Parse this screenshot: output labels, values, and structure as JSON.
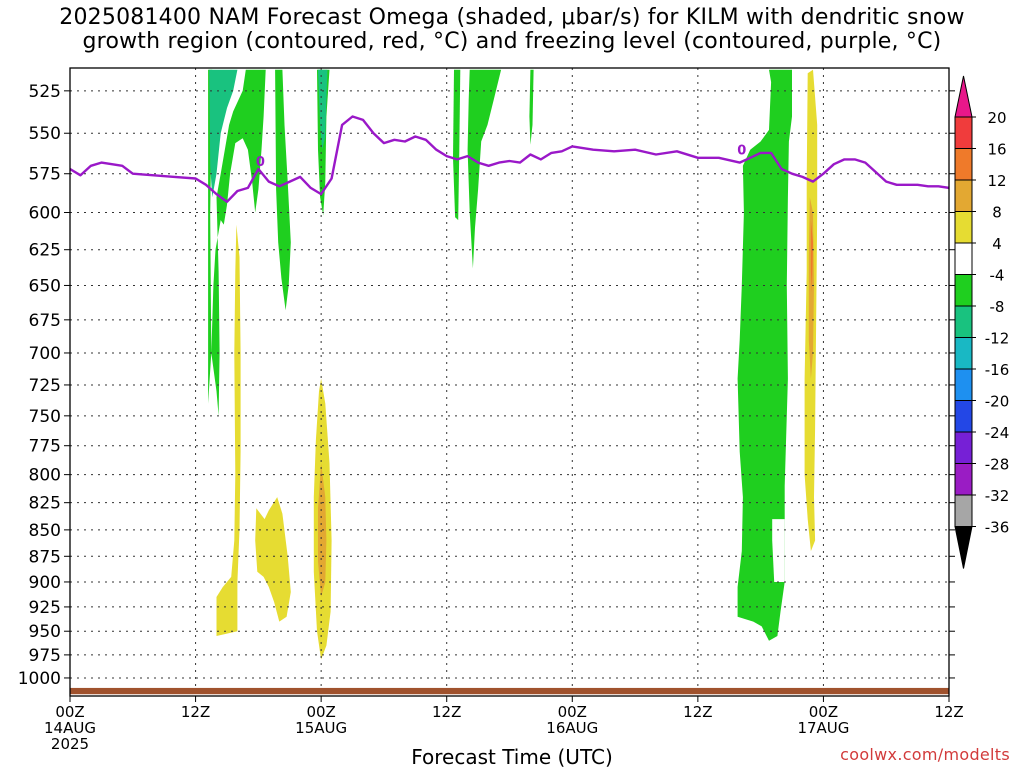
{
  "title": {
    "line1": "2025081400 NAM Forecast Omega (shaded, μbar/s) for KILM with dendritic snow",
    "line2": "growth region (contoured, red, °C) and freezing level (contoured, purple, °C)"
  },
  "credit": "coolwx.com/modelts",
  "chart_data": {
    "type": "heatmap",
    "title": "2025081400 NAM Forecast Omega (shaded, μbar/s) for KILM with dendritic snow growth region (contoured, red, °C) and freezing level (contoured, purple, °C)",
    "xlabel": "Forecast Time (UTC)",
    "ylabel": "",
    "xlim_hours": [
      0,
      84
    ],
    "ylim_hpa": [
      1020,
      512
    ],
    "y_ticks": [
      525,
      550,
      575,
      600,
      625,
      650,
      675,
      700,
      725,
      750,
      775,
      800,
      825,
      850,
      875,
      900,
      925,
      950,
      975,
      1000
    ],
    "x_ticks": [
      {
        "hour": 0,
        "label": "00Z",
        "date": "14AUG",
        "year": "2025"
      },
      {
        "hour": 12,
        "label": "12Z",
        "date": "",
        "year": ""
      },
      {
        "hour": 24,
        "label": "00Z",
        "date": "15AUG",
        "year": ""
      },
      {
        "hour": 36,
        "label": "12Z",
        "date": "",
        "year": ""
      },
      {
        "hour": 48,
        "label": "00Z",
        "date": "16AUG",
        "year": ""
      },
      {
        "hour": 60,
        "label": "12Z",
        "date": "",
        "year": ""
      },
      {
        "hour": 72,
        "label": "00Z",
        "date": "17AUG",
        "year": ""
      },
      {
        "hour": 84,
        "label": "12Z",
        "date": "",
        "year": ""
      }
    ],
    "grid": true,
    "colorbar": {
      "labels": [
        "20",
        "16",
        "12",
        "8",
        "4",
        "-4",
        "-8",
        "-12",
        "-16",
        "-20",
        "-24",
        "-28",
        "-32",
        "-36"
      ],
      "colors": [
        "#e8178a",
        "#f03c3c",
        "#ef7a2a",
        "#e3a832",
        "#e6dc32",
        "#ffffff",
        "#1fcf1f",
        "#19c27f",
        "#19b8c4",
        "#1e90f0",
        "#2347e6",
        "#7620d6",
        "#9a1cc4",
        "#a6a6a6",
        "#000000"
      ]
    },
    "freezing_level": {
      "color": "#9a18c8",
      "label": "0",
      "points": [
        [
          0,
          572
        ],
        [
          1,
          576
        ],
        [
          2,
          570
        ],
        [
          3,
          568
        ],
        [
          4,
          569
        ],
        [
          5,
          570
        ],
        [
          6,
          575
        ],
        [
          8,
          576
        ],
        [
          10,
          577
        ],
        [
          12,
          578
        ],
        [
          13,
          582
        ],
        [
          14,
          588
        ],
        [
          15,
          593
        ],
        [
          16,
          586
        ],
        [
          17,
          584
        ],
        [
          18,
          572
        ],
        [
          19,
          580
        ],
        [
          20,
          583
        ],
        [
          21,
          580
        ],
        [
          22,
          577
        ],
        [
          23,
          584
        ],
        [
          24,
          588
        ],
        [
          25,
          578
        ],
        [
          26,
          545
        ],
        [
          27,
          540
        ],
        [
          28,
          542
        ],
        [
          29,
          550
        ],
        [
          30,
          556
        ],
        [
          31,
          554
        ],
        [
          32,
          555
        ],
        [
          33,
          552
        ],
        [
          34,
          554
        ],
        [
          35,
          560
        ],
        [
          36,
          564
        ],
        [
          37,
          566
        ],
        [
          38,
          564
        ],
        [
          39,
          568
        ],
        [
          40,
          570
        ],
        [
          41,
          568
        ],
        [
          42,
          567
        ],
        [
          43,
          568
        ],
        [
          44,
          563
        ],
        [
          45,
          566
        ],
        [
          46,
          562
        ],
        [
          47,
          561
        ],
        [
          48,
          558
        ],
        [
          50,
          560
        ],
        [
          52,
          561
        ],
        [
          54,
          560
        ],
        [
          56,
          563
        ],
        [
          58,
          561
        ],
        [
          60,
          565
        ],
        [
          62,
          565
        ],
        [
          64,
          568
        ],
        [
          65,
          565
        ],
        [
          66,
          562
        ],
        [
          67,
          562
        ],
        [
          68,
          572
        ],
        [
          69,
          575
        ],
        [
          70,
          577
        ],
        [
          71,
          580
        ],
        [
          72,
          575
        ],
        [
          73,
          569
        ],
        [
          74,
          566
        ],
        [
          75,
          566
        ],
        [
          76,
          568
        ],
        [
          77,
          574
        ],
        [
          78,
          580
        ],
        [
          79,
          582
        ],
        [
          80,
          582
        ],
        [
          81,
          582
        ],
        [
          82,
          583
        ],
        [
          83,
          583
        ],
        [
          84,
          584
        ]
      ]
    },
    "ground": {
      "color": "#a0522d",
      "top_hpa": 1011,
      "bottom_hpa": 1018
    },
    "omega_regions": [
      {
        "name": "green-col-1",
        "level": "-4 to -8",
        "color": "#1fcf1f",
        "points": [
          [
            13.2,
            513
          ],
          [
            13.6,
            513
          ],
          [
            13.4,
            600
          ],
          [
            13.5,
            700
          ],
          [
            14.0,
            730
          ],
          [
            14.2,
            750
          ],
          [
            14.3,
            700
          ],
          [
            14.2,
            640
          ],
          [
            14.0,
            590
          ],
          [
            14.4,
            575
          ],
          [
            15.2,
            545
          ],
          [
            15.6,
            537
          ],
          [
            16.5,
            525
          ],
          [
            16.8,
            513
          ],
          [
            18.7,
            513
          ],
          [
            18.5,
            540
          ],
          [
            18.3,
            560
          ],
          [
            18.0,
            585
          ],
          [
            17.7,
            600
          ],
          [
            17.4,
            580
          ],
          [
            17.0,
            560
          ],
          [
            16.5,
            553
          ],
          [
            15.8,
            556
          ],
          [
            15.3,
            575
          ],
          [
            15.0,
            595
          ],
          [
            14.7,
            608
          ],
          [
            14.4,
            605
          ],
          [
            14.2,
            613
          ],
          [
            13.9,
            625
          ],
          [
            13.7,
            650
          ],
          [
            13.5,
            700
          ],
          [
            13.2,
            740
          ]
        ]
      },
      {
        "name": "teal-col-1",
        "level": "-8 to -12",
        "color": "#19c27f",
        "points": [
          [
            13.3,
            513
          ],
          [
            16.0,
            513
          ],
          [
            15.6,
            525
          ],
          [
            15.0,
            535
          ],
          [
            14.4,
            550
          ],
          [
            14.0,
            575
          ],
          [
            13.6,
            590
          ],
          [
            13.4,
            570
          ]
        ]
      },
      {
        "name": "green-col-2",
        "level": "-4 to -8",
        "color": "#1fcf1f",
        "points": [
          [
            19.6,
            513
          ],
          [
            20.3,
            513
          ],
          [
            20.5,
            545
          ],
          [
            20.8,
            580
          ],
          [
            21.1,
            620
          ],
          [
            20.9,
            650
          ],
          [
            20.6,
            668
          ],
          [
            20.2,
            645
          ],
          [
            19.9,
            620
          ],
          [
            19.7,
            585
          ]
        ]
      },
      {
        "name": "green-col-3",
        "level": "-4 to -8",
        "color": "#1fcf1f",
        "points": [
          [
            23.6,
            513
          ],
          [
            24.8,
            513
          ],
          [
            24.5,
            540
          ],
          [
            24.4,
            580
          ],
          [
            24.2,
            602
          ],
          [
            23.9,
            590
          ],
          [
            23.7,
            560
          ]
        ]
      },
      {
        "name": "teal-col-3",
        "level": "-8 to -12",
        "color": "#19c27f",
        "points": [
          [
            23.7,
            513
          ],
          [
            24.6,
            513
          ],
          [
            24.5,
            530
          ],
          [
            24.4,
            552
          ],
          [
            24.1,
            560
          ],
          [
            23.9,
            545
          ]
        ]
      },
      {
        "name": "green-col-4",
        "level": "-4 to -8",
        "color": "#1fcf1f",
        "points": [
          [
            36.7,
            513
          ],
          [
            37.3,
            513
          ],
          [
            37.2,
            560
          ],
          [
            37.1,
            605
          ],
          [
            36.8,
            603
          ],
          [
            36.6,
            565
          ]
        ]
      },
      {
        "name": "green-col-5",
        "level": "-4 to -8",
        "color": "#1fcf1f",
        "points": [
          [
            38.2,
            513
          ],
          [
            41.2,
            513
          ],
          [
            40.5,
            530
          ],
          [
            39.9,
            545
          ],
          [
            39.3,
            555
          ],
          [
            39.0,
            585
          ],
          [
            38.7,
            610
          ],
          [
            38.5,
            638
          ],
          [
            38.2,
            600
          ],
          [
            38.0,
            560
          ],
          [
            38.1,
            530
          ]
        ]
      },
      {
        "name": "green-col-6",
        "level": "-4 to -8",
        "color": "#1fcf1f",
        "points": [
          [
            44.0,
            513
          ],
          [
            44.3,
            513
          ],
          [
            44.2,
            545
          ],
          [
            44.0,
            557
          ],
          [
            43.9,
            540
          ]
        ]
      },
      {
        "name": "green-col-7",
        "level": "-4 to -8",
        "color": "#1fcf1f",
        "points": [
          [
            66.8,
            513
          ],
          [
            69.0,
            513
          ],
          [
            69.0,
            540
          ],
          [
            68.7,
            555
          ],
          [
            68.6,
            590
          ],
          [
            68.5,
            650
          ],
          [
            68.6,
            720
          ],
          [
            68.3,
            810
          ],
          [
            68.3,
            900
          ],
          [
            67.9,
            930
          ],
          [
            67.6,
            955
          ],
          [
            66.8,
            960
          ],
          [
            66.1,
            945
          ],
          [
            65.3,
            940
          ],
          [
            63.8,
            935
          ],
          [
            63.8,
            905
          ],
          [
            64.2,
            870
          ],
          [
            64.3,
            820
          ],
          [
            64.0,
            780
          ],
          [
            63.8,
            720
          ],
          [
            64.0,
            690
          ],
          [
            64.2,
            650
          ],
          [
            64.4,
            600
          ],
          [
            64.3,
            570
          ],
          [
            65.0,
            560
          ],
          [
            66.0,
            555
          ],
          [
            66.8,
            548
          ],
          [
            67.0,
            520
          ]
        ]
      },
      {
        "name": "white-notch-7",
        "level": "-4 to 4",
        "color": "#ffffff",
        "points": [
          [
            67.1,
            840
          ],
          [
            68.3,
            840
          ],
          [
            68.3,
            900
          ],
          [
            67.3,
            900
          ],
          [
            67.1,
            860
          ]
        ]
      },
      {
        "name": "yellow-col-1",
        "level": "4 to 8",
        "color": "#e6dc32",
        "points": [
          [
            15.9,
            608
          ],
          [
            16.2,
            630
          ],
          [
            16.3,
            700
          ],
          [
            16.3,
            780
          ],
          [
            16.2,
            850
          ],
          [
            16.0,
            900
          ],
          [
            16.0,
            950
          ],
          [
            14.0,
            955
          ],
          [
            14.0,
            915
          ],
          [
            14.6,
            905
          ],
          [
            15.4,
            895
          ],
          [
            15.7,
            860
          ],
          [
            15.8,
            800
          ],
          [
            15.7,
            700
          ],
          [
            15.8,
            640
          ]
        ]
      },
      {
        "name": "yellow-col-2",
        "level": "4 to 8",
        "color": "#e6dc32",
        "points": [
          [
            17.8,
            830
          ],
          [
            18.6,
            840
          ],
          [
            19.0,
            832
          ],
          [
            19.8,
            820
          ],
          [
            20.3,
            835
          ],
          [
            20.8,
            875
          ],
          [
            21.1,
            910
          ],
          [
            20.7,
            935
          ],
          [
            20.0,
            940
          ],
          [
            19.5,
            920
          ],
          [
            19.0,
            905
          ],
          [
            18.5,
            895
          ],
          [
            17.9,
            890
          ],
          [
            17.7,
            860
          ]
        ]
      },
      {
        "name": "yellow-col-3",
        "level": "4 to 8",
        "color": "#e6dc32",
        "points": [
          [
            24.0,
            720
          ],
          [
            24.4,
            740
          ],
          [
            24.8,
            790
          ],
          [
            25.0,
            860
          ],
          [
            24.9,
            930
          ],
          [
            24.5,
            965
          ],
          [
            24.0,
            980
          ],
          [
            23.6,
            950
          ],
          [
            23.3,
            890
          ],
          [
            23.3,
            820
          ],
          [
            23.5,
            770
          ],
          [
            23.8,
            730
          ]
        ]
      },
      {
        "name": "orange-core-3",
        "level": "8 to 12",
        "color": "#e3a832",
        "points": [
          [
            24.0,
            790
          ],
          [
            24.4,
            820
          ],
          [
            24.5,
            860
          ],
          [
            24.4,
            900
          ],
          [
            24.0,
            915
          ],
          [
            23.7,
            880
          ],
          [
            23.7,
            830
          ]
        ]
      },
      {
        "name": "yellow-col-4",
        "level": "4 to 8",
        "color": "#e6dc32",
        "points": [
          [
            70.5,
            515
          ],
          [
            71.0,
            513
          ],
          [
            71.4,
            545
          ],
          [
            71.4,
            600
          ],
          [
            71.3,
            680
          ],
          [
            71.2,
            760
          ],
          [
            71.1,
            820
          ],
          [
            71.2,
            860
          ],
          [
            70.8,
            870
          ],
          [
            70.5,
            840
          ],
          [
            70.2,
            800
          ],
          [
            70.2,
            720
          ],
          [
            70.4,
            640
          ],
          [
            70.4,
            580
          ]
        ]
      },
      {
        "name": "orange-core-4",
        "level": "8 to 12",
        "color": "#e3a832",
        "points": [
          [
            70.7,
            590
          ],
          [
            71.0,
            600
          ],
          [
            71.1,
            650
          ],
          [
            71.0,
            700
          ],
          [
            70.8,
            720
          ],
          [
            70.6,
            690
          ],
          [
            70.6,
            630
          ]
        ]
      },
      {
        "name": "orange-deep-4",
        "level": "12 to 16",
        "color": "#ef7a2a",
        "points": [
          [
            70.8,
            605
          ],
          [
            71.0,
            620
          ],
          [
            70.9,
            655
          ],
          [
            70.8,
            640
          ]
        ]
      }
    ]
  }
}
